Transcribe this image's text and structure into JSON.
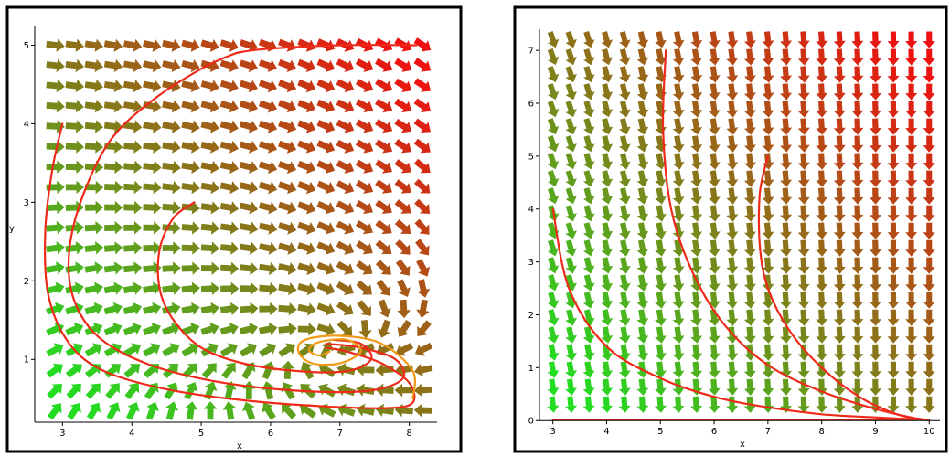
{
  "chart_data": [
    {
      "type": "vector-field",
      "title": "",
      "xlabel": "x",
      "ylabel": "y",
      "xlim": [
        2.6,
        8.4
      ],
      "ylim": [
        0.2,
        5.25
      ],
      "x_ticks": [
        3,
        4,
        5,
        6,
        7,
        8
      ],
      "y_ticks": [
        1,
        2,
        3,
        4,
        5
      ],
      "grid": false,
      "field": {
        "x_range": [
          2.9,
          8.2
        ],
        "y_range": [
          0.35,
          5.0
        ],
        "cols": 20,
        "rows": 19,
        "color_low": "#22dd22",
        "color_high": "#ee1111"
      },
      "series": [
        {
          "color": "#ee2a1a",
          "points": [
            [
              3.0,
              4.0
            ],
            [
              2.85,
              3.4
            ],
            [
              2.75,
              2.6
            ],
            [
              2.8,
              1.8
            ],
            [
              3.1,
              1.2
            ],
            [
              3.6,
              0.85
            ],
            [
              4.5,
              0.62
            ],
            [
              5.6,
              0.48
            ],
            [
              6.8,
              0.4
            ],
            [
              7.7,
              0.38
            ],
            [
              8.05,
              0.45
            ],
            [
              8.0,
              0.7
            ],
            [
              7.6,
              0.95
            ],
            [
              7.1,
              1.1
            ],
            [
              6.8,
              1.15
            ]
          ]
        },
        {
          "color": "#ee2a1a",
          "points": [
            [
              5.5,
              4.9
            ],
            [
              5.0,
              4.7
            ],
            [
              4.3,
              4.3
            ],
            [
              3.7,
              3.8
            ],
            [
              3.3,
              3.1
            ],
            [
              3.1,
              2.4
            ],
            [
              3.15,
              1.8
            ],
            [
              3.5,
              1.3
            ],
            [
              4.2,
              0.95
            ],
            [
              5.2,
              0.72
            ],
            [
              6.4,
              0.6
            ],
            [
              7.4,
              0.6
            ],
            [
              7.9,
              0.75
            ],
            [
              7.8,
              1.0
            ],
            [
              7.3,
              1.15
            ],
            [
              6.8,
              1.2
            ]
          ]
        },
        {
          "color": "#ee2a1a",
          "points": [
            [
              8.1,
              5.0
            ],
            [
              7.0,
              5.0
            ],
            [
              5.9,
              4.95
            ],
            [
              5.5,
              4.9
            ]
          ]
        },
        {
          "color": "#ee2a1a",
          "points": [
            [
              4.9,
              3.0
            ],
            [
              4.6,
              2.8
            ],
            [
              4.4,
              2.4
            ],
            [
              4.4,
              1.9
            ],
            [
              4.6,
              1.5
            ],
            [
              5.0,
              1.15
            ],
            [
              5.6,
              0.95
            ],
            [
              6.4,
              0.85
            ],
            [
              7.1,
              0.85
            ],
            [
              7.45,
              1.0
            ],
            [
              7.3,
              1.2
            ],
            [
              6.9,
              1.25
            ]
          ]
        },
        {
          "color": "#f09a18",
          "points": [
            [
              8.05,
              0.5
            ],
            [
              8.05,
              0.85
            ],
            [
              7.6,
              1.2
            ],
            [
              7.0,
              1.3
            ],
            [
              6.5,
              1.25
            ],
            [
              6.4,
              1.1
            ],
            [
              6.6,
              0.95
            ],
            [
              7.0,
              0.95
            ],
            [
              7.3,
              1.1
            ],
            [
              7.1,
              1.25
            ],
            [
              6.7,
              1.22
            ],
            [
              6.55,
              1.12
            ],
            [
              6.7,
              1.05
            ],
            [
              6.85,
              1.1
            ]
          ]
        }
      ]
    },
    {
      "type": "vector-field",
      "title": "",
      "xlabel": "x",
      "ylabel": "",
      "xlim": [
        2.75,
        10.2
      ],
      "ylim": [
        -0.1,
        7.4
      ],
      "x_ticks": [
        3,
        4,
        5,
        6,
        7,
        8,
        9,
        10
      ],
      "y_ticks": [
        0,
        1,
        2,
        3,
        4,
        5,
        6,
        7
      ],
      "grid": false,
      "field": {
        "x_range": [
          3.0,
          10.0
        ],
        "y_range": [
          0.3,
          7.2
        ],
        "cols": 22,
        "rows": 22,
        "color_low": "#22dd22",
        "color_high": "#ee1111"
      },
      "series": [
        {
          "color": "#ee2a1a",
          "points": [
            [
              3.0,
              4.0
            ],
            [
              3.3,
              2.5
            ],
            [
              4.0,
              1.4
            ],
            [
              5.0,
              0.8
            ],
            [
              6.0,
              0.45
            ],
            [
              7.0,
              0.25
            ],
            [
              8.0,
              0.12
            ],
            [
              9.0,
              0.06
            ],
            [
              9.8,
              0.02
            ]
          ]
        },
        {
          "color": "#ee2a1a",
          "points": [
            [
              5.1,
              7.0
            ],
            [
              5.05,
              5.5
            ],
            [
              5.2,
              4.0
            ],
            [
              5.6,
              2.8
            ],
            [
              6.2,
              1.8
            ],
            [
              7.0,
              1.05
            ],
            [
              8.0,
              0.55
            ],
            [
              9.0,
              0.22
            ],
            [
              9.8,
              0.03
            ]
          ]
        },
        {
          "color": "#ee2a1a",
          "points": [
            [
              7.0,
              5.0
            ],
            [
              6.85,
              4.3
            ],
            [
              6.85,
              3.3
            ],
            [
              7.0,
              2.5
            ],
            [
              7.4,
              1.7
            ],
            [
              8.0,
              1.0
            ],
            [
              8.7,
              0.45
            ],
            [
              9.4,
              0.12
            ],
            [
              9.9,
              0.02
            ]
          ]
        },
        {
          "color": "#ee2a1a",
          "points": [
            [
              3.0,
              0.02
            ],
            [
              6.0,
              0.02
            ],
            [
              9.0,
              0.02
            ],
            [
              10.0,
              0.02
            ]
          ]
        }
      ]
    }
  ]
}
